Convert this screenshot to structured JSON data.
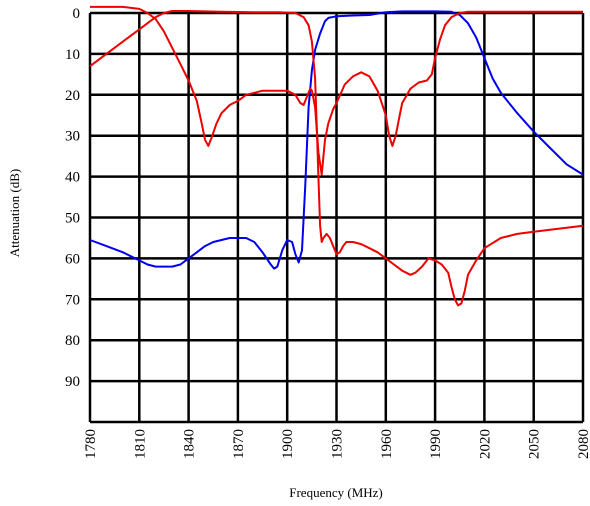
{
  "chart_data": {
    "type": "line",
    "xlabel": "Frequency (MHz)",
    "ylabel": "Attenuation (dB)",
    "xlim": [
      1780,
      2080
    ],
    "ylim": [
      0,
      100
    ],
    "y_inverted": true,
    "grid": true,
    "x_ticks": [
      "1780",
      "1810",
      "1840",
      "1870",
      "1900",
      "1930",
      "1960",
      "1990",
      "2020",
      "2050",
      "2080"
    ],
    "y_ticks": [
      "0",
      "10",
      "20",
      "30",
      "40",
      "50",
      "60",
      "70",
      "80",
      "90"
    ],
    "colors": {
      "blue": "#0000ee",
      "red": "#ee0000"
    },
    "series": [
      {
        "color": "#0000ee",
        "points": [
          [
            1780,
            55.5
          ],
          [
            1790,
            57
          ],
          [
            1800,
            58.5
          ],
          [
            1810,
            60.5
          ],
          [
            1815,
            61.5
          ],
          [
            1820,
            62
          ],
          [
            1825,
            62
          ],
          [
            1830,
            62
          ],
          [
            1835,
            61.5
          ],
          [
            1840,
            60
          ],
          [
            1845,
            58.5
          ],
          [
            1850,
            57
          ],
          [
            1855,
            56
          ],
          [
            1860,
            55.5
          ],
          [
            1865,
            55
          ],
          [
            1870,
            55
          ],
          [
            1875,
            55
          ],
          [
            1880,
            56
          ],
          [
            1885,
            58.5
          ],
          [
            1890,
            61.5
          ],
          [
            1892,
            62.5
          ],
          [
            1894,
            62
          ],
          [
            1897,
            58
          ],
          [
            1900,
            55.5
          ],
          [
            1903,
            56
          ],
          [
            1905,
            59
          ],
          [
            1907,
            61
          ],
          [
            1909,
            58
          ],
          [
            1911,
            42
          ],
          [
            1913,
            23
          ],
          [
            1915,
            14
          ],
          [
            1917,
            9
          ],
          [
            1920,
            5
          ],
          [
            1923,
            2
          ],
          [
            1925,
            1.2
          ],
          [
            1930,
            0.8
          ],
          [
            1940,
            0.6
          ],
          [
            1950,
            0.5
          ],
          [
            1960,
            -0.2
          ],
          [
            1970,
            -0.4
          ],
          [
            1980,
            -0.4
          ],
          [
            1990,
            -0.4
          ],
          [
            2000,
            -0.3
          ],
          [
            2005,
            0.5
          ],
          [
            2010,
            2.5
          ],
          [
            2015,
            6
          ],
          [
            2020,
            11
          ],
          [
            2025,
            16
          ],
          [
            2030,
            19.5
          ],
          [
            2040,
            24.5
          ],
          [
            2050,
            29
          ],
          [
            2060,
            33
          ],
          [
            2070,
            37
          ],
          [
            2080,
            39.5
          ]
        ]
      },
      {
        "color": "#ee0000",
        "points": [
          [
            1780,
            -1.5
          ],
          [
            1790,
            -1.5
          ],
          [
            1800,
            -1.5
          ],
          [
            1810,
            -1
          ],
          [
            1815,
            0
          ],
          [
            1820,
            1.5
          ],
          [
            1825,
            4.5
          ],
          [
            1830,
            8.5
          ],
          [
            1835,
            12.5
          ],
          [
            1840,
            16.5
          ],
          [
            1845,
            21.5
          ],
          [
            1848,
            27
          ],
          [
            1850,
            31
          ],
          [
            1852,
            32.5
          ],
          [
            1854,
            30.5
          ],
          [
            1857,
            27
          ],
          [
            1860,
            24.5
          ],
          [
            1865,
            22.5
          ],
          [
            1870,
            21.5
          ],
          [
            1875,
            20
          ],
          [
            1880,
            19.5
          ],
          [
            1885,
            19
          ],
          [
            1890,
            19
          ],
          [
            1895,
            19
          ],
          [
            1900,
            19
          ],
          [
            1905,
            20
          ],
          [
            1908,
            22
          ],
          [
            1910,
            22.5
          ],
          [
            1912,
            20.5
          ],
          [
            1914,
            18.5
          ],
          [
            1915,
            19
          ],
          [
            1917,
            23
          ],
          [
            1919,
            34
          ],
          [
            1921,
            39.5
          ],
          [
            1923,
            31
          ],
          [
            1925,
            27
          ],
          [
            1928,
            23.5
          ],
          [
            1930,
            22
          ],
          [
            1935,
            17.5
          ],
          [
            1940,
            15.5
          ],
          [
            1945,
            14.5
          ],
          [
            1950,
            15.5
          ],
          [
            1955,
            19
          ],
          [
            1960,
            25
          ],
          [
            1962,
            30
          ],
          [
            1964,
            32.5
          ],
          [
            1966,
            30
          ],
          [
            1968,
            26
          ],
          [
            1970,
            22
          ],
          [
            1975,
            18.5
          ],
          [
            1980,
            17
          ],
          [
            1985,
            16.5
          ],
          [
            1988,
            15
          ],
          [
            1990,
            11
          ],
          [
            1993,
            6.5
          ],
          [
            1996,
            3
          ],
          [
            2000,
            1
          ],
          [
            2005,
            0
          ],
          [
            2010,
            -0.3
          ],
          [
            2020,
            -0.3
          ],
          [
            2040,
            -0.3
          ],
          [
            2060,
            -0.3
          ],
          [
            2080,
            -0.3
          ]
        ]
      },
      {
        "color": "#ee0000",
        "points": [
          [
            1780,
            13
          ],
          [
            1790,
            10
          ],
          [
            1800,
            7
          ],
          [
            1810,
            4
          ],
          [
            1815,
            2.5
          ],
          [
            1820,
            1
          ],
          [
            1825,
            0
          ],
          [
            1830,
            -0.5
          ],
          [
            1840,
            -0.5
          ],
          [
            1860,
            -0.3
          ],
          [
            1880,
            -0.2
          ],
          [
            1895,
            -0.2
          ],
          [
            1905,
            0
          ],
          [
            1910,
            1
          ],
          [
            1913,
            3
          ],
          [
            1915,
            7
          ],
          [
            1917,
            16
          ],
          [
            1918,
            28
          ],
          [
            1919,
            40
          ],
          [
            1920,
            52
          ],
          [
            1921,
            56
          ],
          [
            1922,
            55
          ],
          [
            1924,
            54
          ],
          [
            1926,
            55
          ],
          [
            1928,
            57
          ],
          [
            1930,
            59
          ],
          [
            1932,
            58.5
          ],
          [
            1934,
            57
          ],
          [
            1936,
            56
          ],
          [
            1940,
            56
          ],
          [
            1945,
            56.5
          ],
          [
            1950,
            57.5
          ],
          [
            1955,
            58.5
          ],
          [
            1960,
            60
          ],
          [
            1965,
            61.5
          ],
          [
            1970,
            63
          ],
          [
            1975,
            64
          ],
          [
            1978,
            63.5
          ],
          [
            1982,
            62
          ],
          [
            1986,
            60
          ],
          [
            1990,
            60.5
          ],
          [
            1994,
            61.5
          ],
          [
            1998,
            63.5
          ],
          [
            2000,
            67
          ],
          [
            2002,
            70
          ],
          [
            2004,
            71.5
          ],
          [
            2006,
            71
          ],
          [
            2008,
            68
          ],
          [
            2010,
            64
          ],
          [
            2015,
            60.5
          ],
          [
            2020,
            57.5
          ],
          [
            2030,
            55
          ],
          [
            2040,
            54
          ],
          [
            2050,
            53.5
          ],
          [
            2060,
            53
          ],
          [
            2070,
            52.5
          ],
          [
            2080,
            52
          ]
        ]
      }
    ]
  }
}
